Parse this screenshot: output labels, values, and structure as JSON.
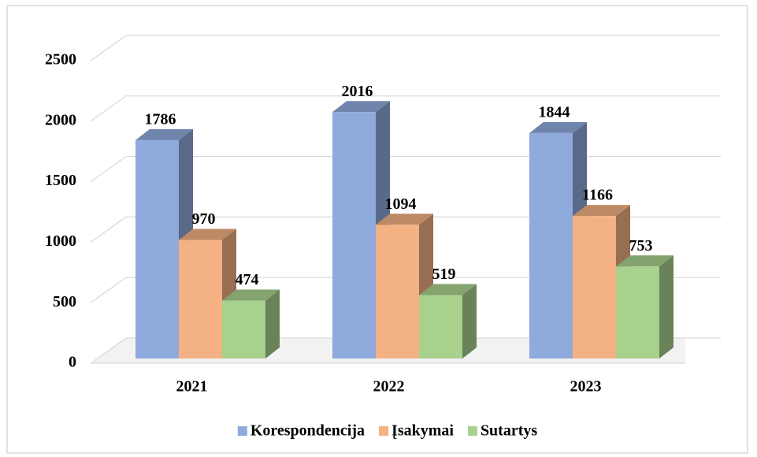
{
  "chart_data": {
    "type": "bar3d",
    "categories": [
      "2021",
      "2022",
      "2023"
    ],
    "series": [
      {
        "name": "Korespondencija",
        "color": "#8faadc",
        "values": [
          1786,
          2016,
          1844
        ]
      },
      {
        "name": "Įsakymai",
        "color": "#f4b183",
        "values": [
          970,
          1094,
          1166
        ]
      },
      {
        "name": "Sutartys",
        "color": "#a9d18e",
        "values": [
          474,
          519,
          753
        ]
      }
    ],
    "ylim": [
      0,
      2500
    ],
    "yticks": [
      0,
      500,
      1000,
      1500,
      2000,
      2500
    ],
    "grid": true,
    "legend": "bottom"
  }
}
